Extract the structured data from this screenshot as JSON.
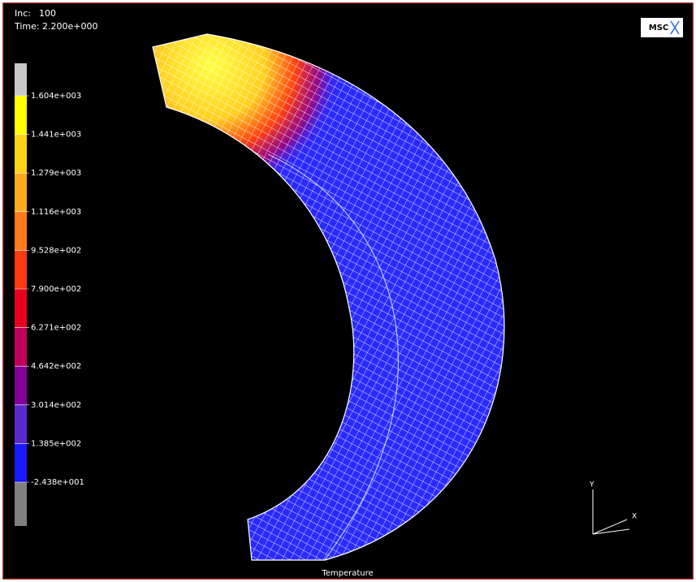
{
  "header": {
    "inc_label": "Inc:",
    "inc": 100,
    "time_label": "Time:",
    "time": "2.200e+000"
  },
  "legend": {
    "labels": [
      "1.604e+003",
      "1.441e+003",
      "1.279e+003",
      "1.116e+003",
      "9.528e+002",
      "7.900e+002",
      "6.271e+002",
      "4.642e+002",
      "3.014e+002",
      "1.385e+002",
      "-2.438e+001"
    ],
    "colors": [
      "#c8c8c8",
      "#ffff00",
      "#ffd21a",
      "#ffaa1a",
      "#ff7a1a",
      "#ff3a10",
      "#e6001e",
      "#c0005a",
      "#84009a",
      "#5a2ad0",
      "#1a1aff",
      "#808080"
    ]
  },
  "logo": "MSC",
  "caption": "Temperature",
  "axes": {
    "x": "X",
    "y": "Y"
  }
}
